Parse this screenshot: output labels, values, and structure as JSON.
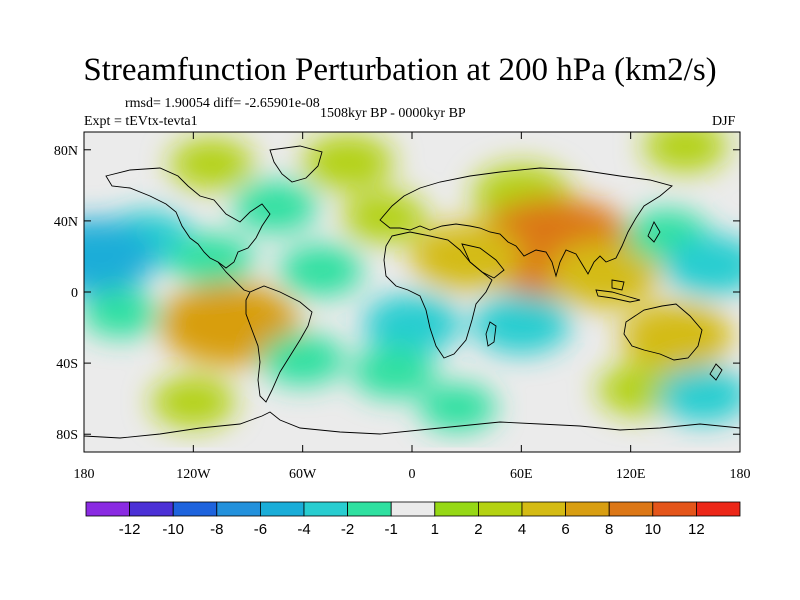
{
  "title": "Streamfunction Perturbation at 200 hPa (km2/s)",
  "stats": "rmsd= 1.90054  diff= -2.65901e-08",
  "experiment": "Expt = tEVtx-tevta1",
  "period": "1508kyr BP - 0000kyr BP",
  "season": "DJF",
  "map": {
    "lon_range": [
      -180,
      180
    ],
    "lat_range": [
      -90,
      90
    ],
    "projection": "cylindrical-equidistant",
    "lat_ticks": [
      {
        "value": 80,
        "label": "80N"
      },
      {
        "value": 40,
        "label": "40N"
      },
      {
        "value": 0,
        "label": "0"
      },
      {
        "value": -40,
        "label": "40S"
      },
      {
        "value": -80,
        "label": "80S"
      }
    ],
    "lon_ticks": [
      {
        "value": -180,
        "label": "180"
      },
      {
        "value": -120,
        "label": "120W"
      },
      {
        "value": -60,
        "label": "60W"
      },
      {
        "value": 0,
        "label": "0"
      },
      {
        "value": 60,
        "label": "60E"
      },
      {
        "value": 120,
        "label": "120E"
      },
      {
        "value": 180,
        "label": "180"
      }
    ],
    "background_color": "#ebebeb",
    "anomalies": [
      {
        "lon": -35,
        "lat": 73,
        "value": 2.5
      },
      {
        "lon": -110,
        "lat": 72,
        "value": 2
      },
      {
        "lon": 150,
        "lat": 82,
        "value": 2
      },
      {
        "lon": -145,
        "lat": 30,
        "value": -2.5
      },
      {
        "lon": -175,
        "lat": 20,
        "value": -5
      },
      {
        "lon": -75,
        "lat": 48,
        "value": -2
      },
      {
        "lon": -110,
        "lat": 18,
        "value": -2
      },
      {
        "lon": -50,
        "lat": 12,
        "value": -2
      },
      {
        "lon": -15,
        "lat": 42,
        "value": 2
      },
      {
        "lon": 60,
        "lat": 55,
        "value": 3
      },
      {
        "lon": 78,
        "lat": 25,
        "value": 8
      },
      {
        "lon": 30,
        "lat": 20,
        "value": 4
      },
      {
        "lon": 105,
        "lat": 10,
        "value": 4
      },
      {
        "lon": 140,
        "lat": 32,
        "value": -2
      },
      {
        "lon": 165,
        "lat": 15,
        "value": -3
      },
      {
        "lon": -100,
        "lat": -18,
        "value": 6
      },
      {
        "lon": -160,
        "lat": -12,
        "value": -1.5
      },
      {
        "lon": -60,
        "lat": -38,
        "value": -2
      },
      {
        "lon": 0,
        "lat": -18,
        "value": -3
      },
      {
        "lon": 60,
        "lat": -18,
        "value": -3
      },
      {
        "lon": -10,
        "lat": -45,
        "value": -2
      },
      {
        "lon": 145,
        "lat": -25,
        "value": 4
      },
      {
        "lon": 125,
        "lat": -55,
        "value": 2
      },
      {
        "lon": 160,
        "lat": -58,
        "value": -2.5
      },
      {
        "lon": -120,
        "lat": -62,
        "value": 2
      },
      {
        "lon": 25,
        "lat": -65,
        "value": -1.5
      }
    ]
  },
  "colorbar": {
    "colors": [
      "#8a2be2",
      "#4b30d6",
      "#1e63dd",
      "#2391dc",
      "#1aadd8",
      "#28cdd0",
      "#2fe0a0",
      "#ebebeb",
      "#96d815",
      "#b4d212",
      "#d4bb14",
      "#d89e11",
      "#dc7716",
      "#e4551a",
      "#ec2718"
    ],
    "labels": [
      "-12",
      "-10",
      "-8",
      "-6",
      "-4",
      "-2",
      "-1",
      "1",
      "2",
      "4",
      "6",
      "8",
      "10",
      "12"
    ],
    "levels": [
      -12,
      -10,
      -8,
      -6,
      -4,
      -2,
      -1,
      1,
      2,
      4,
      6,
      8,
      10,
      12
    ]
  }
}
